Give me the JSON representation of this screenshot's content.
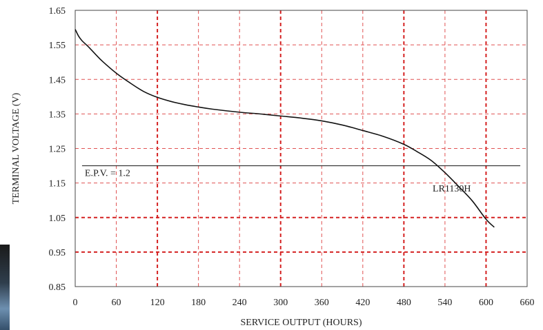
{
  "chart_data": {
    "type": "line",
    "title": "",
    "xlabel": "SERVICE OUTPUT (HOURS)",
    "ylabel": "TERMINAL VOLTAGE (V)",
    "xlim": [
      0,
      660
    ],
    "ylim": [
      0.85,
      1.65
    ],
    "xticks": [
      0,
      60,
      120,
      180,
      240,
      300,
      360,
      420,
      480,
      540,
      600,
      660
    ],
    "yticks": [
      0.85,
      0.95,
      1.05,
      1.15,
      1.25,
      1.35,
      1.45,
      1.55,
      1.65
    ],
    "xtick_labels": [
      "0",
      "60",
      "120",
      "180",
      "240",
      "300",
      "360",
      "420",
      "480",
      "540",
      "600",
      "660"
    ],
    "ytick_labels": [
      "0.85",
      "0.95",
      "1.05",
      "1.15",
      "1.25",
      "1.35",
      "1.45",
      "1.55",
      "1.65"
    ],
    "major_x_gridlines": [
      120,
      300,
      480,
      600
    ],
    "major_y_gridlines": [
      1.05,
      0.95
    ],
    "grid": true,
    "series": [
      {
        "name": "LR1130H",
        "x": [
          0,
          5,
          10,
          20,
          30,
          40,
          60,
          80,
          100,
          120,
          140,
          160,
          180,
          200,
          240,
          270,
          300,
          330,
          360,
          390,
          420,
          450,
          480,
          500,
          520,
          540,
          560,
          580,
          600,
          612
        ],
        "y": [
          1.595,
          1.575,
          1.562,
          1.543,
          1.522,
          1.502,
          1.468,
          1.44,
          1.415,
          1.398,
          1.386,
          1.377,
          1.37,
          1.364,
          1.355,
          1.35,
          1.344,
          1.338,
          1.33,
          1.318,
          1.302,
          1.285,
          1.262,
          1.24,
          1.215,
          1.18,
          1.14,
          1.098,
          1.045,
          1.022
        ]
      }
    ],
    "reference_line": {
      "y": 1.2,
      "x_start": 10,
      "x_end": 650
    },
    "annotations": [
      {
        "text": "E.P.V. = 1.2",
        "x": 14,
        "y": 1.17
      },
      {
        "text": "LR1130H",
        "x": 522,
        "y": 1.125
      }
    ]
  }
}
